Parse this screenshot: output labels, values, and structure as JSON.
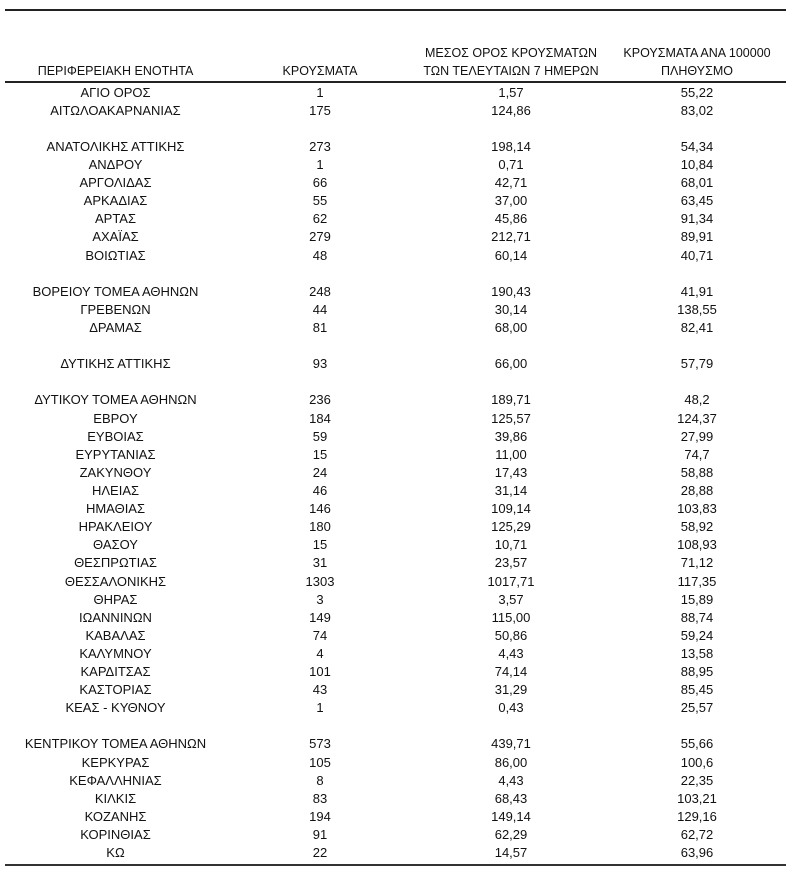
{
  "table": {
    "headers": {
      "region": "ΠΕΡΙΦΕΡΕΙΑΚΗ ΕΝΟΤΗΤΑ",
      "cases": "ΚΡΟΥΣΜΑΤΑ",
      "avg7_line1": "ΜΕΣΟΣ ΟΡΟΣ ΚΡΟΥΣΜΑΤΩΝ",
      "avg7_line2": "ΤΩΝ ΤΕΛΕΥΤΑΙΩΝ 7 ΗΜΕΡΩΝ",
      "per100k_line1": "ΚΡΟΥΣΜΑΤΑ ΑΝΑ 100000",
      "per100k_line2": "ΠΛΗΘΥΣΜΟ"
    },
    "rows": [
      {
        "region": "ΑΓΙΟ ΟΡΟΣ",
        "cases": "1",
        "avg7": "1,57",
        "per100k": "55,22"
      },
      {
        "region": "ΑΙΤΩΛΟΑΚΑΡΝΑΝΙΑΣ",
        "cases": "175",
        "avg7": "124,86",
        "per100k": "83,02"
      },
      {
        "region": "ΑΝΑΤΟΛΙΚΗΣ ΑΤΤΙΚΗΣ",
        "cases": "273",
        "avg7": "198,14",
        "per100k": "54,34",
        "group_break": true
      },
      {
        "region": "ΑΝΔΡΟΥ",
        "cases": "1",
        "avg7": "0,71",
        "per100k": "10,84"
      },
      {
        "region": "ΑΡΓΟΛΙΔΑΣ",
        "cases": "66",
        "avg7": "42,71",
        "per100k": "68,01"
      },
      {
        "region": "ΑΡΚΑΔΙΑΣ",
        "cases": "55",
        "avg7": "37,00",
        "per100k": "63,45"
      },
      {
        "region": "ΑΡΤΑΣ",
        "cases": "62",
        "avg7": "45,86",
        "per100k": "91,34"
      },
      {
        "region": "ΑΧΑΪΑΣ",
        "cases": "279",
        "avg7": "212,71",
        "per100k": "89,91"
      },
      {
        "region": "ΒΟΙΩΤΙΑΣ",
        "cases": "48",
        "avg7": "60,14",
        "per100k": "40,71"
      },
      {
        "region": "ΒΟΡΕΙΟΥ ΤΟΜΕΑ ΑΘΗΝΩΝ",
        "cases": "248",
        "avg7": "190,43",
        "per100k": "41,91",
        "group_break": true
      },
      {
        "region": "ΓΡΕΒΕΝΩΝ",
        "cases": "44",
        "avg7": "30,14",
        "per100k": "138,55"
      },
      {
        "region": "ΔΡΑΜΑΣ",
        "cases": "81",
        "avg7": "68,00",
        "per100k": "82,41"
      },
      {
        "region": "ΔΥΤΙΚΗΣ ΑΤΤΙΚΗΣ",
        "cases": "93",
        "avg7": "66,00",
        "per100k": "57,79",
        "group_break": true
      },
      {
        "region": "ΔΥΤΙΚΟΥ ΤΟΜΕΑ ΑΘΗΝΩΝ",
        "cases": "236",
        "avg7": "189,71",
        "per100k": "48,2",
        "group_break": true
      },
      {
        "region": "ΕΒΡΟΥ",
        "cases": "184",
        "avg7": "125,57",
        "per100k": "124,37"
      },
      {
        "region": "ΕΥΒΟΙΑΣ",
        "cases": "59",
        "avg7": "39,86",
        "per100k": "27,99"
      },
      {
        "region": "ΕΥΡΥΤΑΝΙΑΣ",
        "cases": "15",
        "avg7": "11,00",
        "per100k": "74,7"
      },
      {
        "region": "ΖΑΚΥΝΘΟΥ",
        "cases": "24",
        "avg7": "17,43",
        "per100k": "58,88"
      },
      {
        "region": "ΗΛΕΙΑΣ",
        "cases": "46",
        "avg7": "31,14",
        "per100k": "28,88"
      },
      {
        "region": "ΗΜΑΘΙΑΣ",
        "cases": "146",
        "avg7": "109,14",
        "per100k": "103,83"
      },
      {
        "region": "ΗΡΑΚΛΕΙΟΥ",
        "cases": "180",
        "avg7": "125,29",
        "per100k": "58,92"
      },
      {
        "region": "ΘΑΣΟΥ",
        "cases": "15",
        "avg7": "10,71",
        "per100k": "108,93"
      },
      {
        "region": "ΘΕΣΠΡΩΤΙΑΣ",
        "cases": "31",
        "avg7": "23,57",
        "per100k": "71,12"
      },
      {
        "region": "ΘΕΣΣΑΛΟΝΙΚΗΣ",
        "cases": "1303",
        "avg7": "1017,71",
        "per100k": "117,35"
      },
      {
        "region": "ΘΗΡΑΣ",
        "cases": "3",
        "avg7": "3,57",
        "per100k": "15,89"
      },
      {
        "region": "ΙΩΑΝΝΙΝΩΝ",
        "cases": "149",
        "avg7": "115,00",
        "per100k": "88,74"
      },
      {
        "region": "ΚΑΒΑΛΑΣ",
        "cases": "74",
        "avg7": "50,86",
        "per100k": "59,24"
      },
      {
        "region": "ΚΑΛΥΜΝΟΥ",
        "cases": "4",
        "avg7": "4,43",
        "per100k": "13,58"
      },
      {
        "region": "ΚΑΡΔΙΤΣΑΣ",
        "cases": "101",
        "avg7": "74,14",
        "per100k": "88,95"
      },
      {
        "region": "ΚΑΣΤΟΡΙΑΣ",
        "cases": "43",
        "avg7": "31,29",
        "per100k": "85,45"
      },
      {
        "region": "ΚΕΑΣ - ΚΥΘΝΟΥ",
        "cases": "1",
        "avg7": "0,43",
        "per100k": "25,57"
      },
      {
        "region": "ΚΕΝΤΡΙΚΟΥ ΤΟΜΕΑ ΑΘΗΝΩΝ",
        "cases": "573",
        "avg7": "439,71",
        "per100k": "55,66",
        "group_break": true
      },
      {
        "region": "ΚΕΡΚΥΡΑΣ",
        "cases": "105",
        "avg7": "86,00",
        "per100k": "100,6"
      },
      {
        "region": "ΚΕΦΑΛΛΗΝΙΑΣ",
        "cases": "8",
        "avg7": "4,43",
        "per100k": "22,35"
      },
      {
        "region": "ΚΙΛΚΙΣ",
        "cases": "83",
        "avg7": "68,43",
        "per100k": "103,21"
      },
      {
        "region": "ΚΟΖΑΝΗΣ",
        "cases": "194",
        "avg7": "149,14",
        "per100k": "129,16"
      },
      {
        "region": "ΚΟΡΙΝΘΙΑΣ",
        "cases": "91",
        "avg7": "62,29",
        "per100k": "62,72"
      },
      {
        "region": "ΚΩ",
        "cases": "22",
        "avg7": "14,57",
        "per100k": "63,96"
      }
    ]
  }
}
